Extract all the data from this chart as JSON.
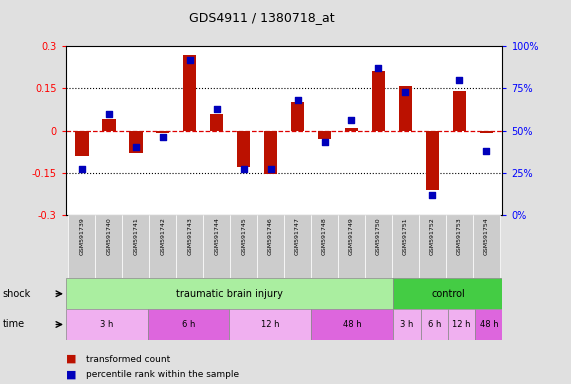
{
  "title": "GDS4911 / 1380718_at",
  "samples": [
    "GSM591739",
    "GSM591740",
    "GSM591741",
    "GSM591742",
    "GSM591743",
    "GSM591744",
    "GSM591745",
    "GSM591746",
    "GSM591747",
    "GSM591748",
    "GSM591749",
    "GSM591750",
    "GSM591751",
    "GSM591752",
    "GSM591753",
    "GSM591754"
  ],
  "bar_values": [
    -0.09,
    0.04,
    -0.08,
    -0.01,
    0.27,
    0.06,
    -0.13,
    -0.155,
    0.1,
    -0.03,
    0.01,
    0.21,
    0.16,
    -0.21,
    0.14,
    -0.01
  ],
  "dot_values_pct": [
    0.27,
    0.6,
    0.4,
    0.46,
    0.92,
    0.63,
    0.27,
    0.27,
    0.68,
    0.43,
    0.56,
    0.87,
    0.73,
    0.12,
    0.8,
    0.38
  ],
  "bar_color": "#bb1100",
  "dot_color": "#0000bb",
  "ylim_left": [
    -0.3,
    0.3
  ],
  "ylim_right": [
    0.0,
    1.0
  ],
  "yticks_left": [
    -0.3,
    -0.15,
    0.0,
    0.15,
    0.3
  ],
  "ytick_labels_left": [
    "-0.3",
    "-0.15",
    "0",
    "0.15",
    "0.3"
  ],
  "yticks_right": [
    0.0,
    0.25,
    0.5,
    0.75,
    1.0
  ],
  "ytick_labels_right": [
    "0%",
    "25%",
    "50%",
    "75%",
    "100%"
  ],
  "hline_zero_color": "#dd0000",
  "hline_dotted_color": "#000000",
  "hlines_dotted": [
    0.15,
    -0.15
  ],
  "shock_label": "shock",
  "time_label": "time",
  "shock_groups": [
    {
      "label": "traumatic brain injury",
      "start": 0,
      "end": 12,
      "color": "#aaeea0"
    },
    {
      "label": "control",
      "start": 12,
      "end": 16,
      "color": "#44cc44"
    }
  ],
  "time_groups": [
    {
      "label": "3 h",
      "start": 0,
      "end": 3,
      "color": "#f0b0f0"
    },
    {
      "label": "6 h",
      "start": 3,
      "end": 6,
      "color": "#dd66dd"
    },
    {
      "label": "12 h",
      "start": 6,
      "end": 9,
      "color": "#f0b0f0"
    },
    {
      "label": "48 h",
      "start": 9,
      "end": 12,
      "color": "#dd66dd"
    },
    {
      "label": "3 h",
      "start": 12,
      "end": 13,
      "color": "#f0b0f0"
    },
    {
      "label": "6 h",
      "start": 13,
      "end": 14,
      "color": "#f0b0f0"
    },
    {
      "label": "12 h",
      "start": 14,
      "end": 15,
      "color": "#f0b0f0"
    },
    {
      "label": "48 h",
      "start": 15,
      "end": 16,
      "color": "#dd66dd"
    }
  ],
  "legend_bar_label": "transformed count",
  "legend_dot_label": "percentile rank within the sample",
  "bg_color": "#e0e0e0",
  "plot_bg_color": "#ffffff",
  "sample_row_color": "#cccccc",
  "bar_width": 0.5
}
